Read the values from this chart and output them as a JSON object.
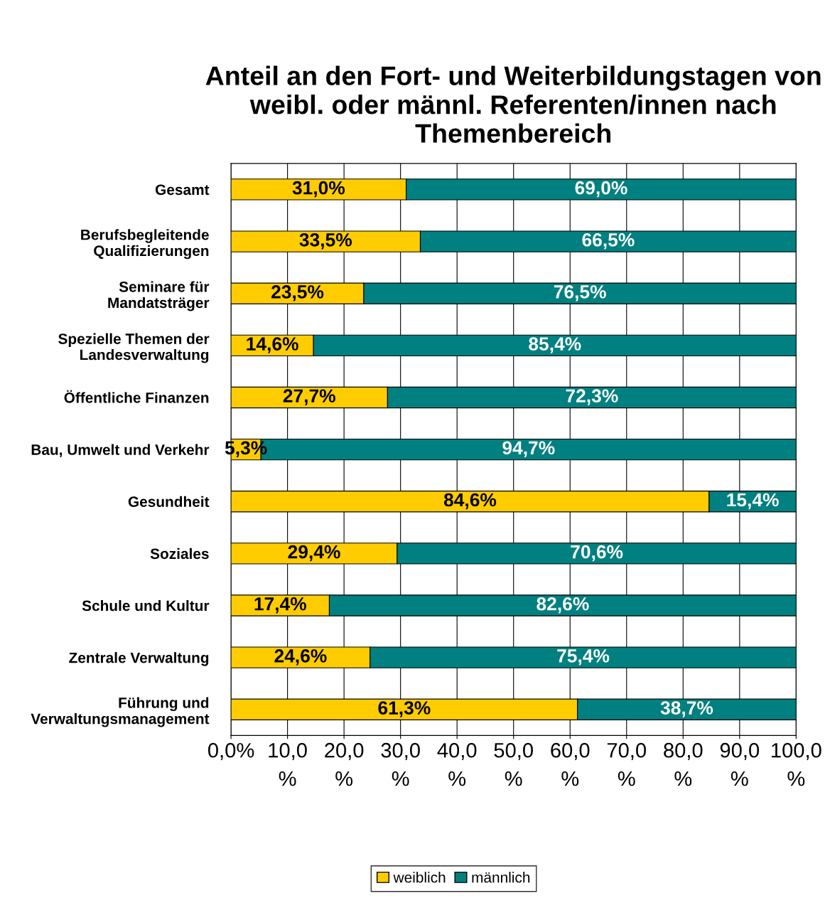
{
  "chart_data": {
    "type": "bar",
    "orientation": "horizontal",
    "stacked": true,
    "title": "Anteil an den Fort- und Weiterbildungstagen von weibl. oder männl. Referenten/innen nach Themenbereich",
    "categories": [
      "Gesamt",
      "Berufsbegleitende\nQualifizierungen",
      "Seminare für\nMandatsträger",
      "Spezielle Themen der\nLandesverwaltung",
      "Öffentliche Finanzen",
      "Bau, Umwelt und Verkehr",
      "Gesundheit",
      "Soziales",
      "Schule und Kultur",
      "Zentrale Verwaltung",
      "Führung und\nVerwaltungsmanagement"
    ],
    "series": [
      {
        "name": "weiblich",
        "color": "#ffcc00",
        "values": [
          31.0,
          33.5,
          23.5,
          14.6,
          27.7,
          5.3,
          84.6,
          29.4,
          17.4,
          24.6,
          61.3
        ],
        "value_labels": [
          "31,0%",
          "33,5%",
          "23,5%",
          "14,6%",
          "27,7%",
          "5,3%",
          "84,6%",
          "29,4%",
          "17,4%",
          "24,6%",
          "61,3%"
        ]
      },
      {
        "name": "männlich",
        "color": "#008080",
        "values": [
          69.0,
          66.5,
          76.5,
          85.4,
          72.3,
          94.7,
          15.4,
          70.6,
          82.6,
          75.4,
          38.7
        ],
        "value_labels": [
          "69,0%",
          "66,5%",
          "76,5%",
          "85,4%",
          "72,3%",
          "94,7%",
          "15,4%",
          "70,6%",
          "82,6%",
          "75,4%",
          "38,7%"
        ]
      }
    ],
    "xlim": [
      0,
      100
    ],
    "xticks": [
      {
        "value": 0,
        "label": "0,0%"
      },
      {
        "value": 10,
        "label": "10,0\n%"
      },
      {
        "value": 20,
        "label": "20,0\n%"
      },
      {
        "value": 30,
        "label": "30,0\n%"
      },
      {
        "value": 40,
        "label": "40,0\n%"
      },
      {
        "value": 50,
        "label": "50,0\n%"
      },
      {
        "value": 60,
        "label": "60,0\n%"
      },
      {
        "value": 70,
        "label": "70,0\n%"
      },
      {
        "value": 80,
        "label": "80,0\n%"
      },
      {
        "value": 90,
        "label": "90,0\n%"
      },
      {
        "value": 100,
        "label": "100,0\n%"
      }
    ],
    "grid": "x",
    "legend": "bottom"
  }
}
